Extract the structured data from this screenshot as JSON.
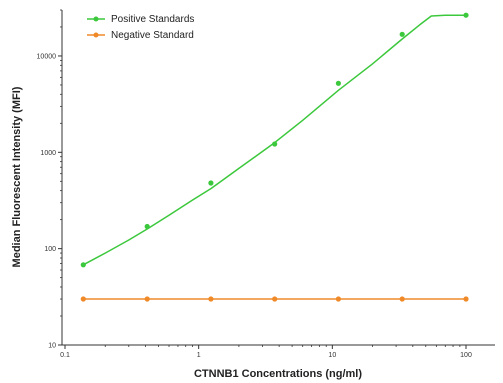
{
  "chart_data": {
    "type": "line",
    "title": "",
    "xlabel": "CTNNB1 Concentrations (ng/ml)",
    "ylabel": "Median Fluorescent Intensity  (MFI)",
    "x_scale": "log",
    "y_scale": "log",
    "xlim": [
      0.1,
      100
    ],
    "ylim": [
      10,
      30000
    ],
    "x_ticks": [
      "0.1",
      "1",
      "10",
      "100"
    ],
    "y_ticks": [
      "10",
      "100",
      "1000",
      "10000"
    ],
    "grid": false,
    "legend_position": "top-left",
    "series": [
      {
        "name": "Positive Standards",
        "color": "#3cc83c",
        "marker": "circle",
        "x": [
          0.137,
          0.412,
          1.235,
          3.704,
          11.11,
          33.33,
          100
        ],
        "y": [
          68,
          170,
          480,
          1220,
          5200,
          16800,
          26500
        ],
        "fit_x": [
          0.137,
          0.2,
          0.3,
          0.412,
          0.6,
          0.9,
          1.235,
          2,
          3.704,
          6,
          11.11,
          20,
          33.33,
          45,
          55,
          70,
          100
        ],
        "fit_y": [
          68,
          90,
          123,
          160,
          222,
          320,
          420,
          680,
          1260,
          2150,
          4400,
          8300,
          15000,
          21000,
          26000,
          26500,
          26500
        ]
      },
      {
        "name": "Negative Standard",
        "color": "#f08a28",
        "marker": "circle",
        "x": [
          0.137,
          0.412,
          1.235,
          3.704,
          11.11,
          33.33,
          100
        ],
        "y": [
          30,
          30,
          30,
          30,
          30,
          30,
          30
        ]
      }
    ]
  }
}
